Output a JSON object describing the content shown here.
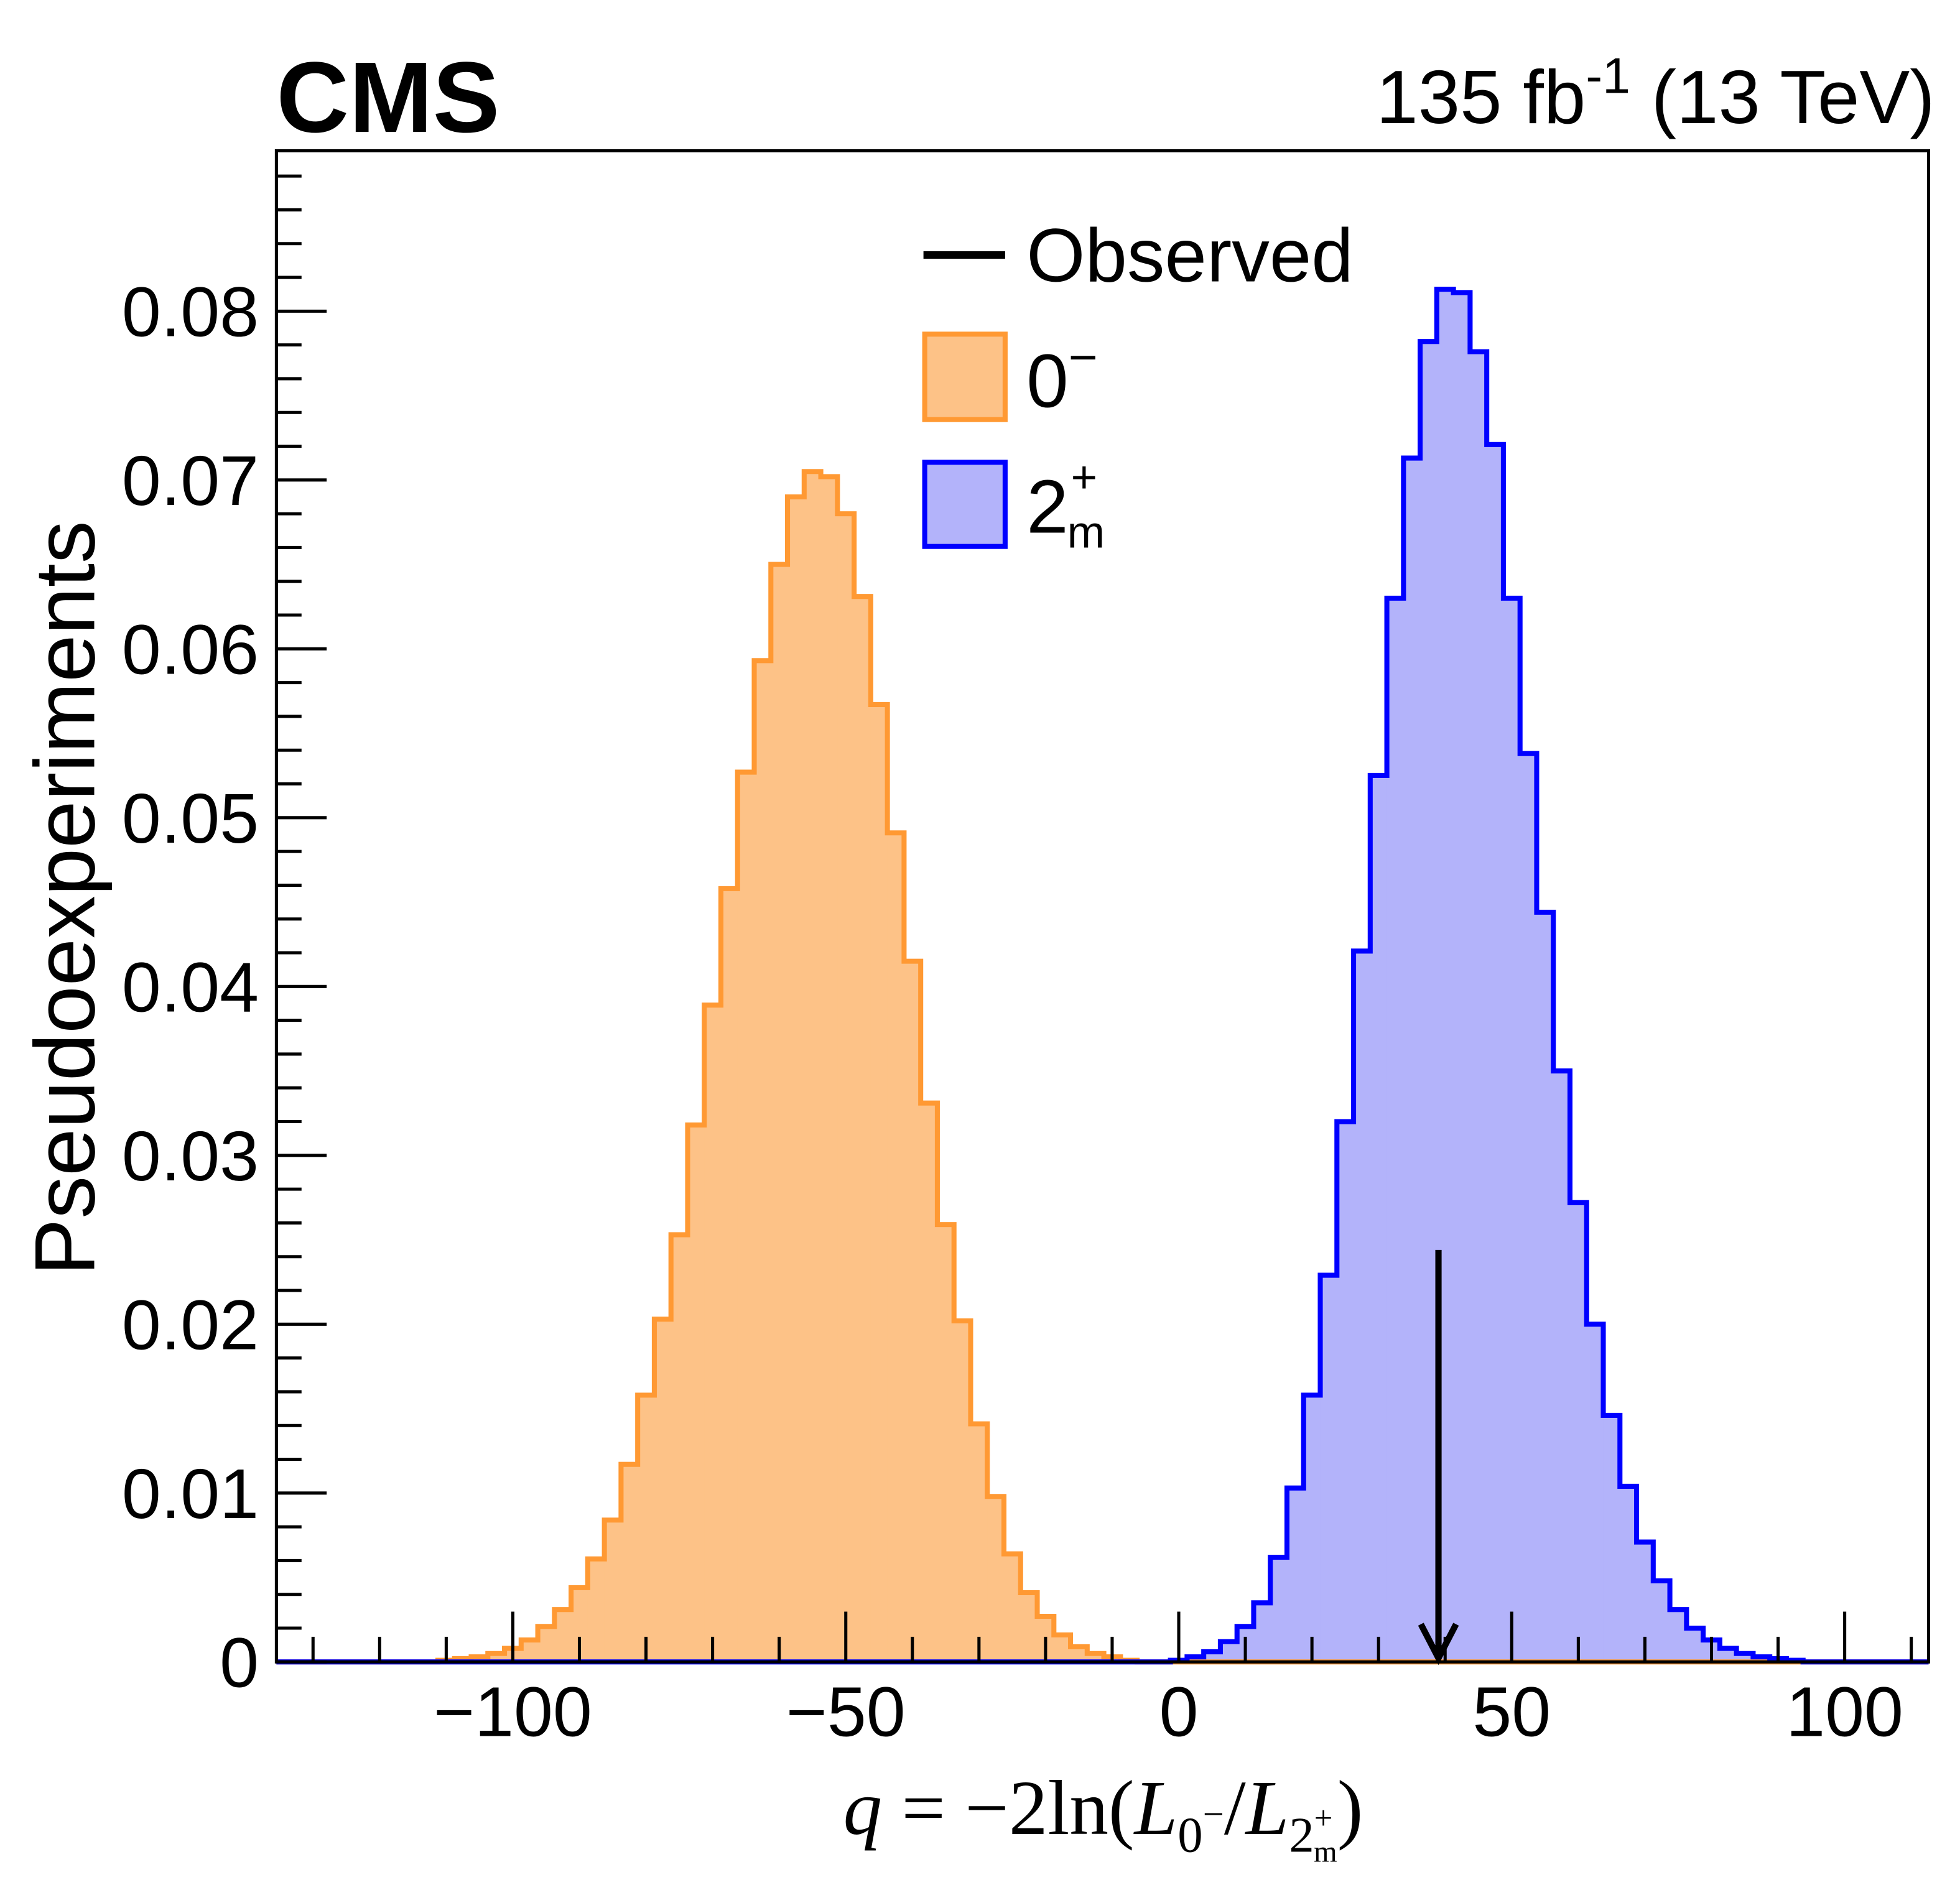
{
  "chart_data": {
    "type": "histogram",
    "experiment_label": "CMS",
    "lumi_label": {
      "main": "135 fb",
      "sup": "-1",
      "rest": " (13 TeV)"
    },
    "xlabel": {
      "q": "q",
      "eq": " = −2ln(",
      "L1": "L",
      "L1sub": "0",
      "L1supsub": "−",
      "slash": "/",
      "L2": "L",
      "L2sub": "2",
      "L2subsup": "+",
      "L2subsub": "m",
      "close": ")"
    },
    "ylabel": "Pseudoexperiments",
    "xlim": [
      -135.5,
      112.6
    ],
    "ylim": [
      0,
      0.0895
    ],
    "x_ticks": [
      -100,
      -50,
      0,
      50,
      100
    ],
    "x_tick_labels": [
      "−100",
      "−50",
      "0",
      "50",
      "100"
    ],
    "y_ticks": [
      0,
      0.01,
      0.02,
      0.03,
      0.04,
      0.05,
      0.06,
      0.07,
      0.08
    ],
    "y_tick_labels": [
      "0",
      "0.01",
      "0.02",
      "0.03",
      "0.04",
      "0.05",
      "0.06",
      "0.07",
      "0.08"
    ],
    "bin_width": 2.5,
    "series": [
      {
        "name": "0−",
        "legend_main": "0",
        "legend_sup": "−",
        "fill": "#fdc287",
        "line": "#ff9933",
        "first_bin_low_edge": -111.25,
        "values": [
          0.0001,
          0.0002,
          0.0003,
          0.0005,
          0.0008,
          0.0013,
          0.0021,
          0.0031,
          0.0044,
          0.0061,
          0.0084,
          0.0117,
          0.0158,
          0.0203,
          0.0253,
          0.0318,
          0.0389,
          0.0458,
          0.0527,
          0.0593,
          0.065,
          0.069,
          0.0705,
          0.0702,
          0.068,
          0.0631,
          0.0567,
          0.0491,
          0.0415,
          0.0331,
          0.0259,
          0.0202,
          0.0141,
          0.0098,
          0.0064,
          0.0041,
          0.0027,
          0.0016,
          0.0009,
          0.0005,
          0.0003,
          0.0001
        ]
      },
      {
        "name": "2m+",
        "legend_main": "2",
        "legend_sup": "+",
        "legend_sub": "m",
        "fill": "#b3b3fa",
        "line": "#0000ff",
        "first_bin_low_edge": -1.25,
        "values": [
          0.0001,
          0.0003,
          0.0006,
          0.0012,
          0.0021,
          0.0035,
          0.0062,
          0.0103,
          0.0158,
          0.0229,
          0.032,
          0.0421,
          0.0525,
          0.063,
          0.0713,
          0.0782,
          0.0813,
          0.0811,
          0.0776,
          0.0721,
          0.063,
          0.0538,
          0.0444,
          0.035,
          0.0272,
          0.02,
          0.0146,
          0.0104,
          0.0071,
          0.0048,
          0.0031,
          0.002,
          0.0013,
          0.0008,
          0.0005,
          0.0003,
          0.0002,
          0.0001
        ]
      }
    ],
    "observed": {
      "label": "Observed",
      "value": 39,
      "arrow_top": 0.0244,
      "color": "#000000"
    },
    "legend_placement": "top-center"
  }
}
